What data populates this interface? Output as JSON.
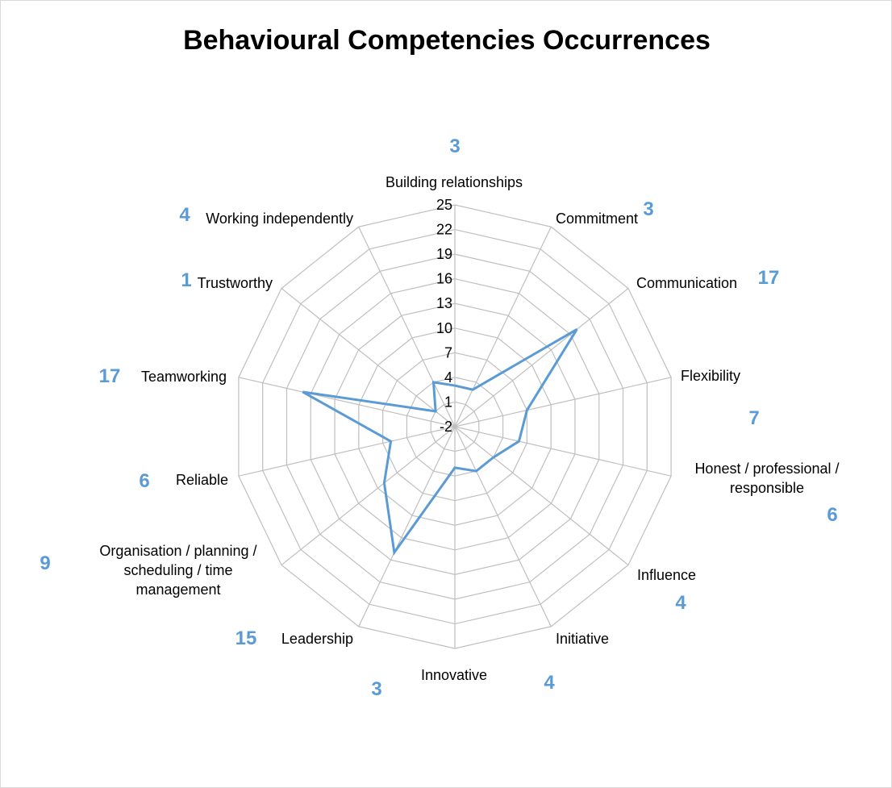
{
  "chart_data": {
    "type": "radar",
    "title": "Behavioural Competencies Occurrences",
    "categories": [
      "Building relationships",
      "Commitment",
      "Communication",
      "Flexibility",
      "Honest / professional / responsible",
      "Influence",
      "Initiative",
      "Innovative",
      "Leadership",
      "Organisation / planning / scheduling / time management",
      "Reliable",
      "Teamworking",
      "Trustworthy",
      "Working independently"
    ],
    "category_lines": [
      [
        "Building relationships"
      ],
      [
        "Commitment"
      ],
      [
        "Communication"
      ],
      [
        "Flexibility"
      ],
      [
        "Honest / professional /",
        "responsible"
      ],
      [
        "Influence"
      ],
      [
        "Initiative"
      ],
      [
        "Innovative"
      ],
      [
        "Leadership"
      ],
      [
        "Organisation / planning /",
        "scheduling / time",
        "management"
      ],
      [
        "Reliable"
      ],
      [
        "Teamworking"
      ],
      [
        "Trustworthy"
      ],
      [
        "Working independently"
      ]
    ],
    "values": [
      3,
      3,
      17,
      7,
      6,
      4,
      4,
      3,
      15,
      9,
      6,
      17,
      1,
      4
    ],
    "value_labels": [
      "3",
      "3",
      "17",
      "7",
      "6",
      "4",
      "4",
      "3",
      "15",
      "9",
      "6",
      "17",
      "1",
      "4"
    ],
    "rlim": [
      -2,
      25
    ],
    "ticks": [
      "-2",
      "1",
      "4",
      "7",
      "10",
      "13",
      "16",
      "19",
      "22",
      "25"
    ],
    "tick_values": [
      -2,
      1,
      4,
      7,
      10,
      13,
      16,
      19,
      22,
      25
    ],
    "series_color": "#5b9bd5",
    "grid_color": "#bfbfbf",
    "legend": "none"
  }
}
